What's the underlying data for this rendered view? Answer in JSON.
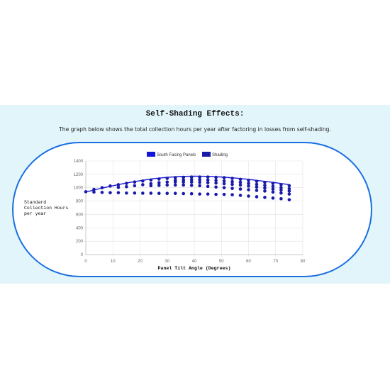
{
  "section": {
    "title": "Self-Shading Effects:",
    "description": "The graph below shows the total collection hours per year after factoring in losses from self-shading."
  },
  "chart_data": {
    "type": "scatter",
    "xlabel": "Panel Tilt Angle (Degrees)",
    "ylabel": "Standard Collection Hours per year",
    "xlim": [
      0,
      80
    ],
    "ylim": [
      0,
      1400
    ],
    "x_ticks": [
      "0",
      "10",
      "20",
      "30",
      "40",
      "50",
      "60",
      "70",
      "80"
    ],
    "y_ticks": [
      "0",
      "200",
      "400",
      "600",
      "800",
      "1000",
      "1200",
      "1400"
    ],
    "grid": true,
    "legend_position": "top-center",
    "series": [
      {
        "name": "South Facing Panels",
        "type": "line",
        "color": "#1515d8",
        "x": [
          0,
          5,
          10,
          15,
          20,
          25,
          30,
          35,
          40,
          45,
          50,
          55,
          60,
          65,
          70,
          75
        ],
        "y": [
          935,
          985,
          1030,
          1070,
          1105,
          1135,
          1155,
          1168,
          1173,
          1170,
          1160,
          1145,
          1125,
          1100,
          1075,
          1045
        ]
      },
      {
        "name": "Shading",
        "type": "scatter",
        "color": "#1a1aa8",
        "points": [
          [
            0,
            940
          ],
          [
            3,
            975
          ],
          [
            3,
            935
          ],
          [
            6,
            1000
          ],
          [
            6,
            930
          ],
          [
            9,
            1025
          ],
          [
            9,
            925
          ],
          [
            12,
            1045
          ],
          [
            12,
            1005
          ],
          [
            12,
            925
          ],
          [
            15,
            1065
          ],
          [
            15,
            1015
          ],
          [
            15,
            920
          ],
          [
            18,
            1085
          ],
          [
            18,
            1030
          ],
          [
            18,
            920
          ],
          [
            21,
            1100
          ],
          [
            21,
            1045
          ],
          [
            21,
            918
          ],
          [
            24,
            1115
          ],
          [
            24,
            1060
          ],
          [
            24,
            1030
          ],
          [
            24,
            918
          ],
          [
            27,
            1130
          ],
          [
            27,
            1075
          ],
          [
            27,
            1035
          ],
          [
            27,
            915
          ],
          [
            30,
            1140
          ],
          [
            30,
            1085
          ],
          [
            30,
            1040
          ],
          [
            30,
            915
          ],
          [
            33,
            1150
          ],
          [
            33,
            1110
          ],
          [
            33,
            1085
          ],
          [
            33,
            1040
          ],
          [
            33,
            915
          ],
          [
            36,
            1155
          ],
          [
            36,
            1115
          ],
          [
            36,
            1085
          ],
          [
            36,
            1040
          ],
          [
            36,
            912
          ],
          [
            39,
            1160
          ],
          [
            39,
            1120
          ],
          [
            39,
            1085
          ],
          [
            39,
            1035
          ],
          [
            39,
            910
          ],
          [
            42,
            1160
          ],
          [
            42,
            1120
          ],
          [
            42,
            1080
          ],
          [
            42,
            1030
          ],
          [
            42,
            905
          ],
          [
            45,
            1160
          ],
          [
            45,
            1115
          ],
          [
            45,
            1075
          ],
          [
            45,
            1020
          ],
          [
            45,
            905
          ],
          [
            48,
            1155
          ],
          [
            48,
            1110
          ],
          [
            48,
            1070
          ],
          [
            48,
            1010
          ],
          [
            48,
            900
          ],
          [
            51,
            1150
          ],
          [
            51,
            1100
          ],
          [
            51,
            1060
          ],
          [
            51,
            1000
          ],
          [
            51,
            900
          ],
          [
            54,
            1140
          ],
          [
            54,
            1090
          ],
          [
            54,
            1050
          ],
          [
            54,
            990
          ],
          [
            54,
            895
          ],
          [
            57,
            1125
          ],
          [
            57,
            1080
          ],
          [
            57,
            1040
          ],
          [
            57,
            980
          ],
          [
            57,
            885
          ],
          [
            60,
            1110
          ],
          [
            60,
            1065
          ],
          [
            60,
            1025
          ],
          [
            60,
            970
          ],
          [
            60,
            875
          ],
          [
            63,
            1095
          ],
          [
            63,
            1050
          ],
          [
            63,
            1010
          ],
          [
            63,
            960
          ],
          [
            63,
            865
          ],
          [
            66,
            1080
          ],
          [
            66,
            1035
          ],
          [
            66,
            995
          ],
          [
            66,
            950
          ],
          [
            66,
            855
          ],
          [
            69,
            1065
          ],
          [
            69,
            1020
          ],
          [
            69,
            980
          ],
          [
            69,
            935
          ],
          [
            69,
            845
          ],
          [
            72,
            1045
          ],
          [
            72,
            1000
          ],
          [
            72,
            965
          ],
          [
            72,
            920
          ],
          [
            72,
            835
          ],
          [
            75,
            1030
          ],
          [
            75,
            985
          ],
          [
            75,
            950
          ],
          [
            75,
            905
          ],
          [
            75,
            820
          ]
        ]
      }
    ]
  }
}
